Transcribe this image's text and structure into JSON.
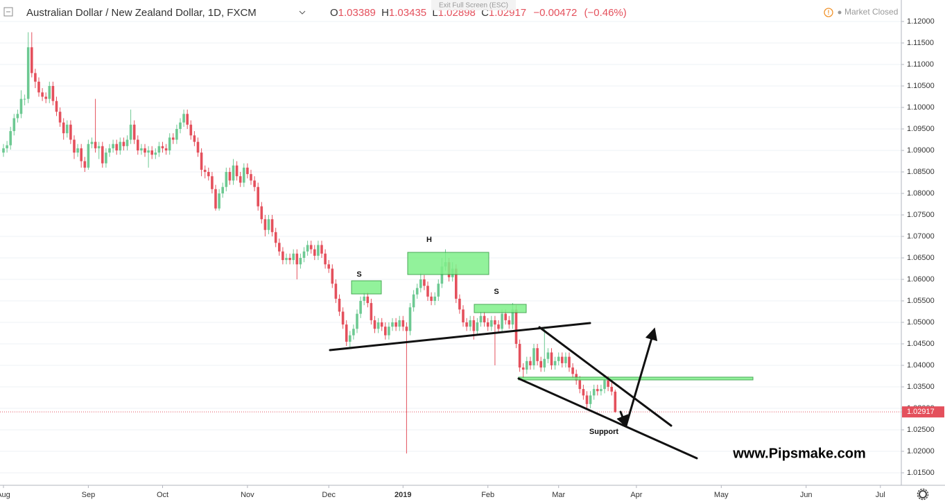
{
  "chart_data": {
    "type": "candlestick",
    "title": "Australian Dollar / New Zealand Dollar, 1D, FXCM",
    "ohlc_labels": [
      "O",
      "H",
      "L",
      "C"
    ],
    "change": "−0.00472",
    "change_pct": "(−0.46%)",
    "status": "Market Closed",
    "exit_hint": "Exit Full Screen (ESC)",
    "annotations": [
      "S",
      "H",
      "S",
      "Support"
    ],
    "watermark": "www.Pipsmake.com",
    "up_color": "#6dc992",
    "down_color": "#e4505c",
    "grid": true,
    "ylim": [
      1.0121,
      1.125
    ],
    "yticks": [
      {
        "value": 1.12,
        "label": "1.12000"
      },
      {
        "value": 1.115,
        "label": "1.11500"
      },
      {
        "value": 1.11,
        "label": "1.11000"
      },
      {
        "value": 1.105,
        "label": "1.10500"
      },
      {
        "value": 1.1,
        "label": "1.10000"
      },
      {
        "value": 1.095,
        "label": "1.09500"
      },
      {
        "value": 1.09,
        "label": "1.09000"
      },
      {
        "value": 1.085,
        "label": "1.08500"
      },
      {
        "value": 1.08,
        "label": "1.08000"
      },
      {
        "value": 1.075,
        "label": "1.07500"
      },
      {
        "value": 1.07,
        "label": "1.07000"
      },
      {
        "value": 1.065,
        "label": "1.06500"
      },
      {
        "value": 1.06,
        "label": "1.06000"
      },
      {
        "value": 1.055,
        "label": "1.05500"
      },
      {
        "value": 1.05,
        "label": "1.05000"
      },
      {
        "value": 1.045,
        "label": "1.04500"
      },
      {
        "value": 1.04,
        "label": "1.04000"
      },
      {
        "value": 1.035,
        "label": "1.03500"
      },
      {
        "value": 1.03,
        "label": "1.03000"
      },
      {
        "value": 1.025,
        "label": "1.02500"
      },
      {
        "value": 1.02,
        "label": "1.02000"
      },
      {
        "value": 1.015,
        "label": "1.01500"
      }
    ],
    "categories": [
      "Aug",
      null,
      null,
      null,
      null,
      null,
      null,
      null,
      null,
      null,
      null,
      null,
      null,
      null,
      null,
      null,
      null,
      null,
      null,
      null,
      null,
      null,
      null,
      null,
      "Sep",
      null,
      null,
      null,
      null,
      null,
      null,
      null,
      null,
      null,
      null,
      null,
      null,
      null,
      null,
      null,
      null,
      null,
      null,
      null,
      null,
      "Oct",
      null,
      null,
      null,
      null,
      null,
      null,
      null,
      null,
      null,
      null,
      null,
      null,
      null,
      null,
      null,
      null,
      null,
      null,
      null,
      null,
      null,
      null,
      null,
      "Nov",
      null,
      null,
      null,
      null,
      null,
      null,
      null,
      null,
      null,
      null,
      null,
      null,
      null,
      null,
      null,
      null,
      null,
      null,
      null,
      null,
      null,
      null,
      "Dec",
      null,
      null,
      null,
      null,
      null,
      null,
      null,
      null,
      null,
      null,
      null,
      null,
      null,
      null,
      null,
      null,
      null,
      null,
      null,
      null,
      "2019",
      null,
      null,
      null,
      null,
      null,
      null,
      null,
      null,
      null,
      null,
      null,
      null,
      null,
      null,
      null,
      null,
      null,
      null,
      null,
      null,
      null,
      null,
      null,
      "Feb",
      null,
      null,
      null,
      null,
      null,
      null,
      null,
      null,
      null,
      null,
      null,
      null,
      null,
      null,
      null,
      null,
      null,
      null,
      null,
      "Mar",
      null,
      null,
      null,
      null,
      null,
      null,
      null,
      null,
      null,
      null,
      null,
      null,
      null,
      null,
      null,
      null,
      null,
      null,
      null,
      null,
      null,
      "Apr",
      null,
      null,
      null,
      null,
      null,
      null,
      null,
      null,
      null,
      null,
      null,
      null,
      null,
      null,
      null,
      null,
      null,
      null,
      null,
      null,
      null,
      null,
      null,
      "May",
      null,
      null,
      null,
      null,
      null,
      null,
      null,
      null,
      null,
      null,
      null,
      null,
      null,
      null,
      null,
      null,
      null,
      null,
      null,
      null,
      null,
      null,
      null,
      "Jun",
      null,
      null,
      null,
      null,
      null,
      null,
      null,
      null,
      null,
      null,
      null,
      null,
      null,
      null,
      null,
      null,
      null,
      null,
      null,
      null,
      "Jul"
    ],
    "open": [
      1.0895,
      1.0905,
      1.0912,
      1.0945,
      1.0975,
      1.0985,
      1.102,
      1.102,
      1.114,
      1.108,
      1.106,
      1.1035,
      1.1025,
      1.102,
      1.105,
      1.1015,
      1.099,
      1.0965,
      1.094,
      1.096,
      1.0925,
      1.0895,
      1.0905,
      1.0875,
      1.086,
      1.0915,
      1.092,
      1.0905,
      1.091,
      1.087,
      1.0895,
      1.0905,
      1.0915,
      1.09,
      1.092,
      1.091,
      1.0925,
      1.096,
      1.0925,
      1.09,
      1.0905,
      1.0895,
      1.09,
      1.089,
      1.0895,
      1.091,
      1.0905,
      1.09,
      1.093,
      1.0925,
      1.095,
      1.0965,
      1.0985,
      1.096,
      1.0935,
      1.092,
      1.0895,
      1.0855,
      1.085,
      1.084,
      1.081,
      1.0765,
      1.08,
      1.0815,
      1.085,
      1.083,
      1.0865,
      1.084,
      1.0825,
      1.086,
      1.0845,
      1.083,
      1.0815,
      1.077,
      1.074,
      1.0715,
      1.074,
      1.071,
      1.0685,
      1.0665,
      1.0645,
      1.065,
      1.0645,
      1.066,
      1.0635,
      1.065,
      1.0665,
      1.068,
      1.067,
      1.0655,
      1.068,
      1.066,
      1.0635,
      1.0625,
      1.059,
      1.0555,
      1.0525,
      1.0495,
      1.0455,
      1.047,
      1.0485,
      1.052,
      1.055,
      1.056,
      1.0545,
      1.0505,
      1.0485,
      1.05,
      1.049,
      1.047,
      1.049,
      1.05,
      1.049,
      1.0505,
      1.049,
      1.048,
      1.0535,
      1.0565,
      1.058,
      1.06,
      1.0585,
      1.056,
      1.055,
      1.056,
      1.059,
      1.063,
      1.064,
      1.0605,
      1.0625,
      1.0555,
      1.053,
      1.05,
      1.049,
      1.0505,
      1.048,
      1.05,
      1.0515,
      1.05,
      1.049,
      1.0505,
      1.0495,
      1.0485,
      1.052,
      1.0505,
      1.0495,
      1.053,
      1.045,
      1.0395,
      1.039,
      1.041,
      1.04,
      1.044,
      1.041,
      1.0395,
      1.0415,
      1.043,
      1.04,
      1.041,
      1.042,
      1.0405,
      1.042,
      1.0395,
      1.038,
      1.0365,
      1.0345,
      1.033,
      1.031,
      1.033,
      1.0345,
      1.034,
      1.0345,
      1.0365,
      1.035,
      1.03389,
      null,
      null,
      null,
      null,
      null,
      null,
      null,
      null,
      null,
      null,
      null,
      null,
      null,
      null,
      null,
      null,
      null,
      null,
      null,
      null,
      null,
      null,
      null,
      null,
      null,
      null,
      null,
      null,
      null,
      null,
      null,
      null,
      null,
      null,
      null,
      null,
      null,
      null,
      null,
      null,
      null,
      null,
      null,
      null,
      null,
      null,
      null,
      null,
      null,
      null,
      null,
      null,
      null,
      null,
      null,
      null,
      null,
      null,
      null,
      null,
      null,
      null,
      null,
      null,
      null,
      null,
      null,
      null,
      null,
      null,
      null,
      null,
      null,
      null,
      null
    ],
    "high": [
      1.0915,
      1.0922,
      1.0955,
      1.0985,
      1.0995,
      1.104,
      1.103,
      1.1175,
      1.1175,
      1.109,
      1.107,
      1.1045,
      1.1035,
      1.106,
      1.106,
      1.1025,
      1.1,
      1.0975,
      1.097,
      1.097,
      1.0935,
      1.0915,
      1.0915,
      1.0885,
      1.0925,
      1.093,
      1.102,
      1.092,
      1.092,
      1.0905,
      1.0915,
      1.0925,
      1.0925,
      1.093,
      1.093,
      1.0935,
      1.0995,
      1.097,
      1.0935,
      1.0915,
      1.0915,
      1.091,
      1.091,
      1.0905,
      1.092,
      1.092,
      1.0915,
      1.094,
      1.094,
      1.096,
      1.0975,
      1.0995,
      1.0995,
      1.097,
      1.0945,
      1.093,
      1.0905,
      1.0865,
      1.086,
      1.085,
      1.082,
      1.081,
      1.0825,
      1.086,
      1.086,
      1.088,
      1.0875,
      1.085,
      1.087,
      1.087,
      1.0855,
      1.084,
      1.0825,
      1.078,
      1.075,
      1.075,
      1.075,
      1.072,
      1.0695,
      1.0675,
      1.066,
      1.066,
      1.067,
      1.067,
      1.066,
      1.0675,
      1.069,
      1.069,
      1.068,
      1.069,
      1.069,
      1.067,
      1.0645,
      1.0635,
      1.06,
      1.0565,
      1.0535,
      1.0505,
      1.048,
      1.0495,
      1.053,
      1.056,
      1.057,
      1.057,
      1.0555,
      1.0515,
      1.051,
      1.051,
      1.05,
      1.05,
      1.051,
      1.051,
      1.0515,
      1.0515,
      1.05,
      1.0545,
      1.0575,
      1.059,
      1.0615,
      1.061,
      1.0595,
      1.057,
      1.057,
      1.06,
      1.065,
      1.067,
      1.065,
      1.064,
      1.0635,
      1.0565,
      1.054,
      1.051,
      1.0515,
      1.0515,
      1.051,
      1.0525,
      1.0525,
      1.051,
      1.0515,
      1.0515,
      1.0505,
      1.053,
      1.053,
      1.0515,
      1.0545,
      1.054,
      1.046,
      1.0405,
      1.042,
      1.042,
      1.045,
      1.045,
      1.042,
      1.049,
      1.044,
      1.044,
      1.042,
      1.043,
      1.043,
      1.043,
      1.043,
      1.0405,
      1.039,
      1.0375,
      1.0355,
      1.034,
      1.034,
      1.0355,
      1.0355,
      1.0355,
      1.0375,
      1.0375,
      1.036,
      1.03435,
      null,
      null,
      null,
      null,
      null,
      null,
      null,
      null,
      null,
      null,
      null,
      null,
      null,
      null,
      null,
      null,
      null,
      null,
      null,
      null,
      null,
      null,
      null,
      null,
      null,
      null,
      null,
      null,
      null,
      null,
      null,
      null,
      null,
      null,
      null,
      null,
      null,
      null,
      null,
      null,
      null,
      null,
      null,
      null,
      null,
      null,
      null,
      null,
      null,
      null,
      null,
      null,
      null,
      null,
      null,
      null,
      null,
      null,
      null,
      null,
      null,
      null,
      null,
      null,
      null,
      null,
      null,
      null,
      null,
      null,
      null,
      null,
      null,
      null,
      null
    ],
    "low": [
      1.0885,
      1.0895,
      1.0902,
      1.0935,
      1.0965,
      1.0975,
      1.1005,
      1.101,
      1.107,
      1.1045,
      1.1025,
      1.1015,
      1.101,
      1.101,
      1.1005,
      1.098,
      1.0955,
      1.0925,
      1.093,
      1.0915,
      1.088,
      1.0885,
      1.086,
      1.085,
      1.0855,
      1.0905,
      1.0895,
      1.088,
      1.086,
      1.086,
      1.0885,
      1.0895,
      1.089,
      1.089,
      1.09,
      1.09,
      1.0915,
      1.0915,
      1.089,
      1.089,
      1.0885,
      1.086,
      1.088,
      1.088,
      1.0885,
      1.0895,
      1.089,
      1.089,
      1.0915,
      1.0915,
      1.094,
      1.0955,
      1.095,
      1.0925,
      1.091,
      1.0885,
      1.084,
      1.0835,
      1.083,
      1.08,
      1.076,
      1.076,
      1.079,
      1.0805,
      1.082,
      1.082,
      1.083,
      1.0815,
      1.0815,
      1.0835,
      1.082,
      1.0805,
      1.076,
      1.073,
      1.07,
      1.0705,
      1.07,
      1.0675,
      1.0655,
      1.0635,
      1.0635,
      1.0635,
      1.0635,
      1.06,
      1.0625,
      1.064,
      1.0655,
      1.066,
      1.0645,
      1.0645,
      1.065,
      1.0625,
      1.0615,
      1.058,
      1.0545,
      1.0515,
      1.0485,
      1.0445,
      1.044,
      1.046,
      1.0475,
      1.051,
      1.054,
      1.0535,
      1.0495,
      1.0475,
      1.0475,
      1.048,
      1.046,
      1.046,
      1.048,
      1.048,
      1.048,
      1.048,
      1.0195,
      1.047,
      1.0525,
      1.0555,
      1.057,
      1.0575,
      1.055,
      1.054,
      1.054,
      1.055,
      1.058,
      1.062,
      1.0595,
      1.0595,
      1.0545,
      1.052,
      1.049,
      1.048,
      1.048,
      1.046,
      1.047,
      1.049,
      1.049,
      1.048,
      1.048,
      1.04,
      1.0475,
      1.0475,
      1.0495,
      1.0485,
      1.0485,
      1.044,
      1.0385,
      1.037,
      1.038,
      1.039,
      1.039,
      1.04,
      1.0385,
      1.0385,
      1.0405,
      1.039,
      1.039,
      1.04,
      1.0395,
      1.0395,
      1.0385,
      1.037,
      1.0355,
      1.0335,
      1.032,
      1.03,
      1.03,
      1.032,
      1.033,
      1.033,
      1.0335,
      1.034,
      1.033,
      1.02898,
      null,
      null,
      null,
      null,
      null,
      null,
      null,
      null,
      null,
      null,
      null,
      null,
      null,
      null,
      null,
      null,
      null,
      null,
      null,
      null,
      null,
      null,
      null,
      null,
      null,
      null,
      null,
      null,
      null,
      null,
      null,
      null,
      null,
      null,
      null,
      null,
      null,
      null,
      null,
      null,
      null,
      null,
      null,
      null,
      null,
      null,
      null,
      null,
      null,
      null,
      null,
      null,
      null,
      null,
      null,
      null,
      null,
      null,
      null,
      null,
      null,
      null,
      null,
      null,
      null,
      null,
      null,
      null,
      null,
      null,
      null,
      null,
      null,
      null,
      null
    ],
    "close": [
      1.0905,
      1.0912,
      1.0945,
      1.0975,
      1.0985,
      1.102,
      1.102,
      1.114,
      1.108,
      1.106,
      1.1035,
      1.1025,
      1.102,
      1.105,
      1.1015,
      1.099,
      1.0965,
      1.094,
      1.096,
      1.0925,
      1.0895,
      1.0905,
      1.0875,
      1.086,
      1.0915,
      1.092,
      1.0905,
      1.091,
      1.087,
      1.0895,
      1.0905,
      1.0915,
      1.09,
      1.092,
      1.091,
      1.0925,
      1.096,
      1.0925,
      1.09,
      1.0905,
      1.0895,
      1.09,
      1.089,
      1.0895,
      1.091,
      1.0905,
      1.09,
      1.093,
      1.0925,
      1.095,
      1.0965,
      1.0985,
      1.096,
      1.0935,
      1.092,
      1.0895,
      1.0855,
      1.085,
      1.084,
      1.081,
      1.0765,
      1.08,
      1.0815,
      1.085,
      1.083,
      1.0865,
      1.084,
      1.0825,
      1.086,
      1.0845,
      1.083,
      1.0815,
      1.077,
      1.074,
      1.0715,
      1.074,
      1.071,
      1.0685,
      1.0665,
      1.0645,
      1.065,
      1.0645,
      1.066,
      1.0635,
      1.065,
      1.0665,
      1.068,
      1.067,
      1.0655,
      1.068,
      1.066,
      1.0635,
      1.0625,
      1.059,
      1.0555,
      1.0525,
      1.0495,
      1.0455,
      1.047,
      1.0485,
      1.052,
      1.055,
      1.056,
      1.0545,
      1.0505,
      1.0485,
      1.05,
      1.049,
      1.047,
      1.049,
      1.05,
      1.049,
      1.0505,
      1.049,
      1.048,
      1.0535,
      1.0565,
      1.058,
      1.06,
      1.0585,
      1.056,
      1.055,
      1.056,
      1.059,
      1.063,
      1.064,
      1.0605,
      1.0625,
      1.0555,
      1.053,
      1.05,
      1.049,
      1.0505,
      1.048,
      1.05,
      1.0515,
      1.05,
      1.049,
      1.0505,
      1.0495,
      1.0485,
      1.052,
      1.0505,
      1.0495,
      1.053,
      1.045,
      1.0395,
      1.039,
      1.041,
      1.04,
      1.044,
      1.041,
      1.0395,
      1.0415,
      1.043,
      1.04,
      1.041,
      1.042,
      1.0405,
      1.042,
      1.0395,
      1.038,
      1.0365,
      1.0345,
      1.033,
      1.031,
      1.033,
      1.0345,
      1.034,
      1.0345,
      1.0365,
      1.035,
      1.0339,
      1.02917,
      null,
      null,
      null,
      null,
      null,
      null,
      null,
      null,
      null,
      null,
      null,
      null,
      null,
      null,
      null,
      null,
      null,
      null,
      null,
      null,
      null,
      null,
      null,
      null,
      null,
      null,
      null,
      null,
      null,
      null,
      null,
      null,
      null,
      null,
      null,
      null,
      null,
      null,
      null,
      null,
      null,
      null,
      null,
      null,
      null,
      null,
      null,
      null,
      null,
      null,
      null,
      null,
      null,
      null,
      null,
      null,
      null,
      null,
      null,
      null,
      null,
      null,
      null,
      null,
      null,
      null,
      null,
      null,
      null,
      null,
      null,
      null,
      null,
      null,
      null
    ]
  }
}
